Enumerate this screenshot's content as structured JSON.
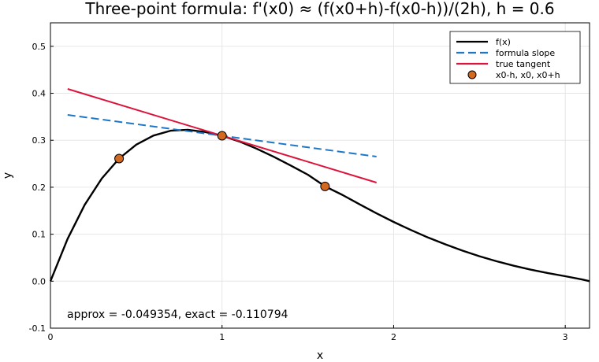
{
  "chart_data": {
    "type": "line",
    "title": "Three-point formula: f'(x0) ≈ (f(x0+h)-f(x0-h))/(2h),  h = 0.6",
    "xlabel": "x",
    "ylabel": "y",
    "xlim": [
      0,
      3.14159
    ],
    "ylim": [
      -0.1,
      0.55
    ],
    "xticks": [
      0,
      1,
      2,
      3
    ],
    "xtick_labels": [
      "0",
      "1",
      "2",
      "3"
    ],
    "yticks": [
      -0.1,
      0.0,
      0.1,
      0.2,
      0.3,
      0.4,
      0.5
    ],
    "ytick_labels": [
      "-0.1",
      "0.0",
      "0.1",
      "0.2",
      "0.3",
      "0.4",
      "0.5"
    ],
    "grid": true,
    "legend_position": "top-right",
    "series": [
      {
        "name": "f(x)",
        "kind": "line",
        "color": "#000000",
        "style": "solid",
        "x": [
          0.0,
          0.1,
          0.2,
          0.3,
          0.4,
          0.5,
          0.6,
          0.7,
          0.8,
          0.9,
          1.0,
          1.1,
          1.2,
          1.3,
          1.4,
          1.5,
          1.6,
          1.7,
          1.8,
          1.9,
          2.0,
          2.1,
          2.2,
          2.3,
          2.4,
          2.5,
          2.6,
          2.7,
          2.8,
          2.9,
          3.0,
          3.1,
          3.14159
        ],
        "y": [
          0.0,
          0.0903,
          0.1627,
          0.2189,
          0.261,
          0.2906,
          0.3099,
          0.3204,
          0.3223,
          0.3176,
          0.3096,
          0.2975,
          0.2823,
          0.2651,
          0.2463,
          0.2267,
          0.2018,
          0.184,
          0.164,
          0.1445,
          0.1261,
          0.109,
          0.093,
          0.0785,
          0.0652,
          0.0531,
          0.0424,
          0.0328,
          0.0244,
          0.0171,
          0.0106,
          0.0035,
          0.0
        ]
      },
      {
        "name": "formula slope",
        "kind": "line",
        "color": "#1f77c4",
        "style": "dashed",
        "x": [
          0.1,
          1.9
        ],
        "y": [
          0.354,
          0.2652
        ]
      },
      {
        "name": "true tangent",
        "kind": "line",
        "color": "#dc143c",
        "style": "solid",
        "x": [
          0.1,
          1.9
        ],
        "y": [
          0.4093,
          0.2099
        ]
      },
      {
        "name": "x0-h, x0, x0+h",
        "kind": "scatter",
        "color": "#d2691e",
        "x": [
          0.4,
          1.0,
          1.6
        ],
        "y": [
          0.261,
          0.3096,
          0.2018
        ]
      }
    ],
    "annotation": "approx = -0.049354, exact = -0.110794"
  }
}
